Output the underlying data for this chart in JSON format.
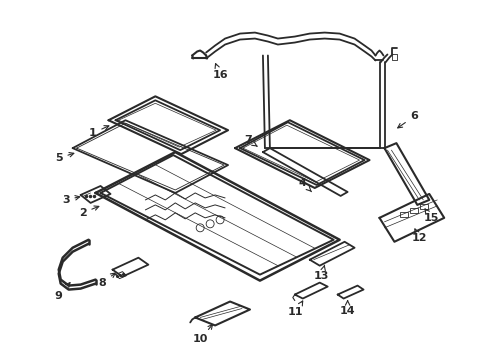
{
  "background_color": "#ffffff",
  "line_color": "#2a2a2a",
  "line_width": 1.0,
  "fig_width": 4.89,
  "fig_height": 3.6,
  "dpi": 100
}
